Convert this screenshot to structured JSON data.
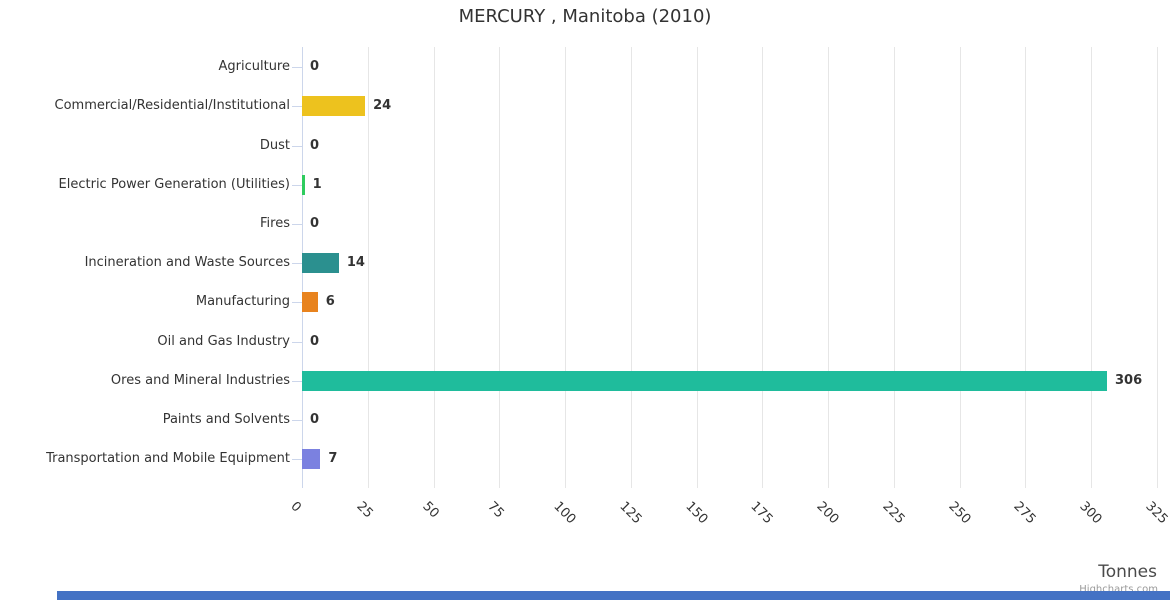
{
  "title": "MERCURY , Manitoba (2010)",
  "credits": "Highcharts.com",
  "chart_data": {
    "type": "bar",
    "orientation": "horizontal",
    "title": "MERCURY , Manitoba (2010)",
    "categories": [
      "Agriculture",
      "Commercial/Residential/Institutional",
      "Dust",
      "Electric Power Generation (Utilities)",
      "Fires",
      "Incineration and Waste Sources",
      "Manufacturing",
      "Oil and Gas Industry",
      "Ores and Mineral Industries",
      "Paints and Solvents",
      "Transportation and Mobile Equipment"
    ],
    "values": [
      0,
      24,
      0,
      1,
      0,
      14,
      6,
      0,
      306,
      0,
      7
    ],
    "colors": [
      null,
      "#EDC21E",
      null,
      "#2ECC5E",
      null,
      "#2B908F",
      "#E8831E",
      null,
      "#1FBC9C",
      null,
      "#7B81E0"
    ],
    "xlabel": "Tonnes",
    "xlim": [
      0,
      325
    ],
    "xticks": [
      0,
      25,
      50,
      75,
      100,
      125,
      150,
      175,
      200,
      225,
      250,
      275,
      300,
      325
    ],
    "tick_label_rotation": 45,
    "grid": true,
    "legend": false,
    "data_labels": true
  },
  "ui_colors": {
    "grid_line": "#E6E6E6",
    "axis_line": "#CCD6EB",
    "category_tick": "#CCD6EB",
    "text": "#333333",
    "axis_title_text": "#4A4A4A",
    "credits_text": "#9A9A9A",
    "footer_strip": "#4472C4"
  }
}
